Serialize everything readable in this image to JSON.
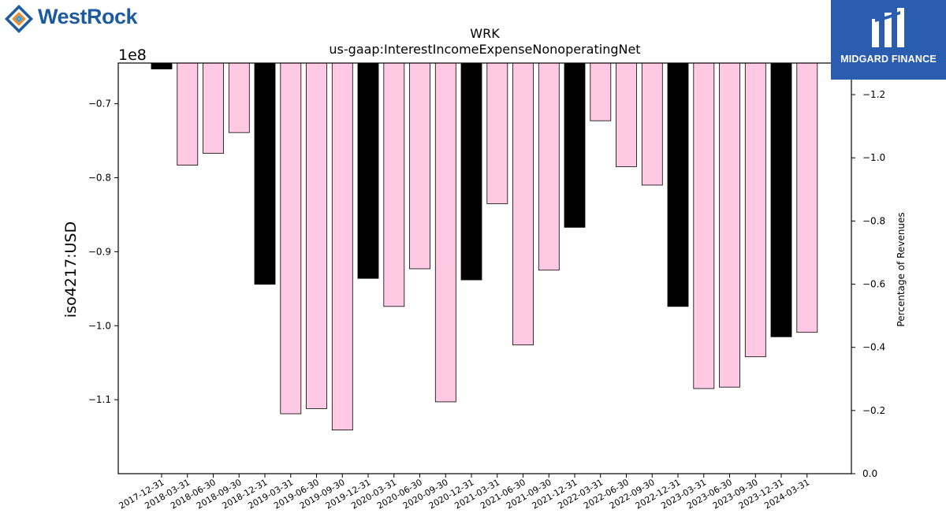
{
  "logos": {
    "left_text": "WestRock",
    "right_text": "MIDGARD FINANCE"
  },
  "chart_data": {
    "type": "bar",
    "title": "WRK",
    "subtitle": "us-gaap:InterestIncomeExpenseNonoperatingNet",
    "ylabel": "iso4217:USD",
    "y_offset_label": "1e8",
    "y2label": "Percentage of Revenues",
    "categories": [
      "2017-12-31",
      "2018-03-31",
      "2018-06-30",
      "2018-09-30",
      "2018-12-31",
      "2019-03-31",
      "2019-06-30",
      "2019-09-30",
      "2019-12-31",
      "2020-03-31",
      "2020-06-30",
      "2020-09-30",
      "2020-12-31",
      "2021-03-31",
      "2021-06-30",
      "2021-09-30",
      "2021-12-31",
      "2022-03-31",
      "2022-06-30",
      "2022-09-30",
      "2022-12-31",
      "2023-03-31",
      "2023-06-30",
      "2023-09-30",
      "2023-12-31",
      "2024-03-31"
    ],
    "values": [
      -65300000,
      -78300000,
      -76700000,
      -73900000,
      -94400000,
      -111900000,
      -111200000,
      -114100000,
      -93600000,
      -97400000,
      -92300000,
      -110300000,
      -93800000,
      -83500000,
      -102600000,
      -92500000,
      -86700000,
      -72300000,
      -78500000,
      -81000000,
      -97400000,
      -108500000,
      -108300000,
      -104200000,
      -101500000,
      -100900000
    ],
    "colors": [
      "#000000",
      "#ffc9e3",
      "#ffc9e3",
      "#ffc9e3",
      "#000000",
      "#ffc9e3",
      "#ffc9e3",
      "#ffc9e3",
      "#000000",
      "#ffc9e3",
      "#ffc9e3",
      "#ffc9e3",
      "#000000",
      "#ffc9e3",
      "#ffc9e3",
      "#ffc9e3",
      "#000000",
      "#ffc9e3",
      "#ffc9e3",
      "#ffc9e3",
      "#000000",
      "#ffc9e3",
      "#ffc9e3",
      "#ffc9e3",
      "#000000",
      "#ffc9e3"
    ],
    "ylim": [
      -120000000,
      -64500000
    ],
    "yticks": [
      -70000000,
      -80000000,
      -90000000,
      -100000000,
      -110000000
    ],
    "ytick_labels": [
      "−0.7",
      "−0.8",
      "−0.9",
      "−1.0",
      "−1.1"
    ],
    "y2lim": [
      0,
      1.3
    ],
    "y2ticks": [
      0,
      0.2,
      0.4,
      0.6,
      0.8,
      1.0,
      1.2
    ],
    "y2tick_labels": [
      "0.0",
      "−0.2",
      "−0.4",
      "−0.6",
      "−0.8",
      "−1.0",
      "−1.2"
    ],
    "grid": false,
    "legend": "none"
  }
}
